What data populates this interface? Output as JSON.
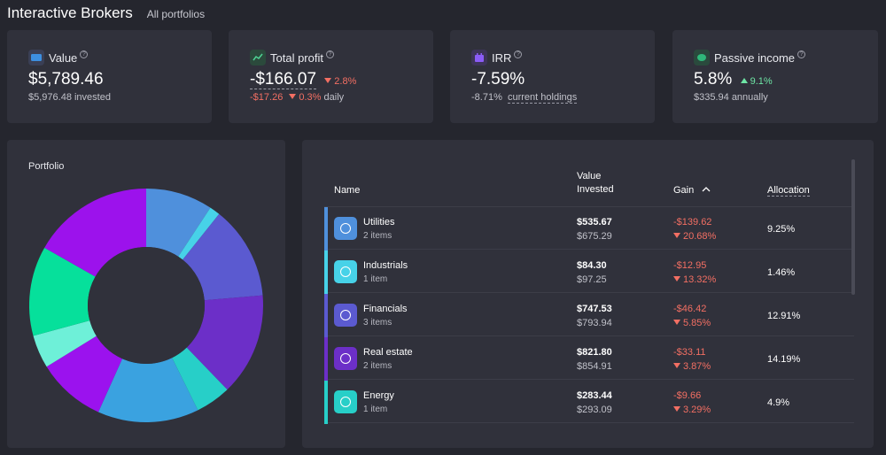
{
  "header": {
    "title": "Interactive Brokers",
    "portfolio_link": "All portfolios"
  },
  "cards": {
    "value": {
      "label": "Value",
      "amount": "$5,789.46",
      "sub": "$5,976.48 invested",
      "icon": "wallet-icon",
      "color": "#3d8fe0"
    },
    "profit": {
      "label": "Total profit",
      "amount": "-$166.07",
      "change_pct": "2.8%",
      "daily_amount": "-$17.26",
      "daily_pct": "0.3%",
      "daily_label": "daily",
      "icon": "chart-line-icon",
      "color": "#2e9e6a"
    },
    "irr": {
      "label": "IRR",
      "amount": "-7.59%",
      "sub_value": "-8.71%",
      "sub_link": "current holdings",
      "icon": "calendar-icon",
      "color": "#8b5cf6"
    },
    "passive": {
      "label": "Passive income",
      "amount": "5.8%",
      "change_pct": "9.1%",
      "sub": "$335.94 annually",
      "icon": "piggy-bank-icon",
      "color": "#2fb97a"
    }
  },
  "portfolio": {
    "title": "Portfolio",
    "segments": [
      {
        "value": 9.25,
        "color": "#4f90dc"
      },
      {
        "value": 1.46,
        "color": "#47d2e8"
      },
      {
        "value": 12.91,
        "color": "#5b5ad0"
      },
      {
        "value": 14.19,
        "color": "#6c2fc8"
      },
      {
        "value": 4.9,
        "color": "#27cfc8"
      },
      {
        "value": 14.0,
        "color": "#3aa2e0"
      },
      {
        "value": 9.5,
        "color": "#9b12ee"
      },
      {
        "value": 4.6,
        "color": "#6ef0d8"
      },
      {
        "value": 12.4,
        "color": "#06e09b"
      },
      {
        "value": 16.79,
        "color": "#9c12ec"
      }
    ]
  },
  "table": {
    "headers": {
      "name": "Name",
      "value": "Value",
      "invested": "Invested",
      "gain": "Gain",
      "allocation": "Allocation"
    },
    "rows": [
      {
        "name": "Utilities",
        "count": "2 items",
        "value": "$535.67",
        "invested": "$675.29",
        "gain": "-$139.62",
        "gain_pct": "20.68%",
        "allocation": "9.25%",
        "color": "#4f90dc"
      },
      {
        "name": "Industrials",
        "count": "1 item",
        "value": "$84.30",
        "invested": "$97.25",
        "gain": "-$12.95",
        "gain_pct": "13.32%",
        "allocation": "1.46%",
        "color": "#47d2e8"
      },
      {
        "name": "Financials",
        "count": "3 items",
        "value": "$747.53",
        "invested": "$793.94",
        "gain": "-$46.42",
        "gain_pct": "5.85%",
        "allocation": "12.91%",
        "color": "#5b5ad0"
      },
      {
        "name": "Real estate",
        "count": "2 items",
        "value": "$821.80",
        "invested": "$854.91",
        "gain": "-$33.11",
        "gain_pct": "3.87%",
        "allocation": "14.19%",
        "color": "#6c2fc8"
      },
      {
        "name": "Energy",
        "count": "1 item",
        "value": "$283.44",
        "invested": "$293.09",
        "gain": "-$9.66",
        "gain_pct": "3.29%",
        "allocation": "4.9%",
        "color": "#27cfc8"
      }
    ]
  }
}
